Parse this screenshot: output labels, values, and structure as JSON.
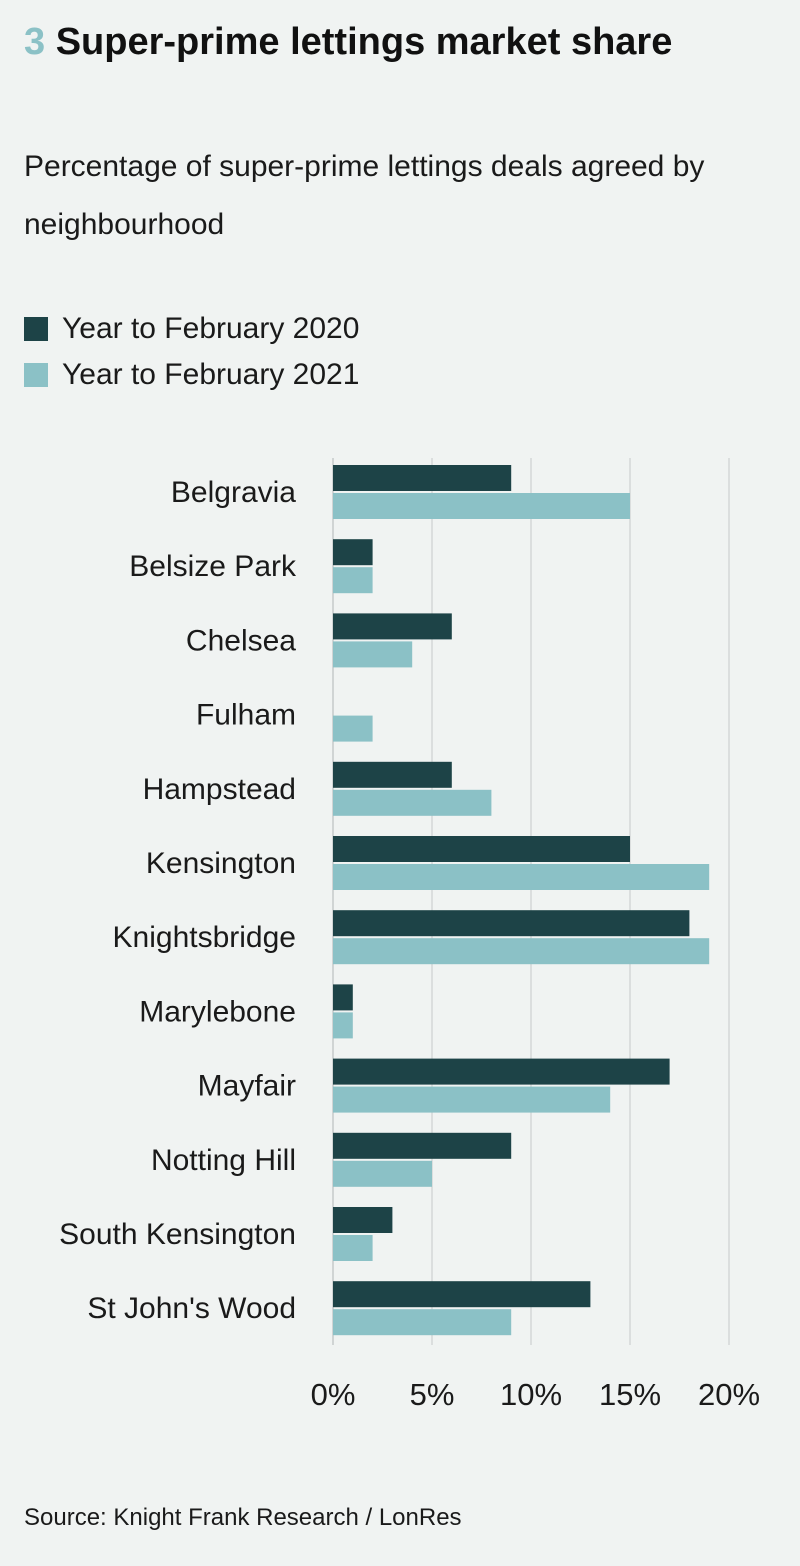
{
  "heading": {
    "number": "3",
    "title": "Super-prime lettings market share",
    "subtitle": "Percentage of super-prime lettings deals agreed by neighbourhood"
  },
  "source": "Source: Knight Frank Research / LonRes",
  "colors": {
    "series_2020": "#1d4347",
    "series_2021": "#8bc1c6",
    "grid": "#c6cac9",
    "background": "#f0f3f2"
  },
  "chart_data": {
    "type": "bar",
    "orientation": "horizontal",
    "title": "Super-prime lettings market share",
    "subtitle": "Percentage of super-prime lettings deals agreed by neighbourhood",
    "categories": [
      "Belgravia",
      "Belsize Park",
      "Chelsea",
      "Fulham",
      "Hampstead",
      "Kensington",
      "Knightsbridge",
      "Marylebone",
      "Mayfair",
      "Notting Hill",
      "South Kensington",
      "St John's Wood"
    ],
    "series": [
      {
        "name": "Year to February 2020",
        "values": [
          9,
          2,
          6,
          0,
          6,
          15,
          18,
          1,
          17,
          9,
          3,
          13
        ]
      },
      {
        "name": "Year to February 2021",
        "values": [
          15,
          2,
          4,
          2,
          8,
          19,
          19,
          1,
          14,
          5,
          2,
          9
        ]
      }
    ],
    "xlim": [
      0,
      20
    ],
    "xticks": [
      0,
      5,
      10,
      15,
      20
    ],
    "xtick_labels": [
      "0%",
      "5%",
      "10%",
      "15%",
      "20%"
    ],
    "grid": true,
    "legend_position": "top-left"
  }
}
